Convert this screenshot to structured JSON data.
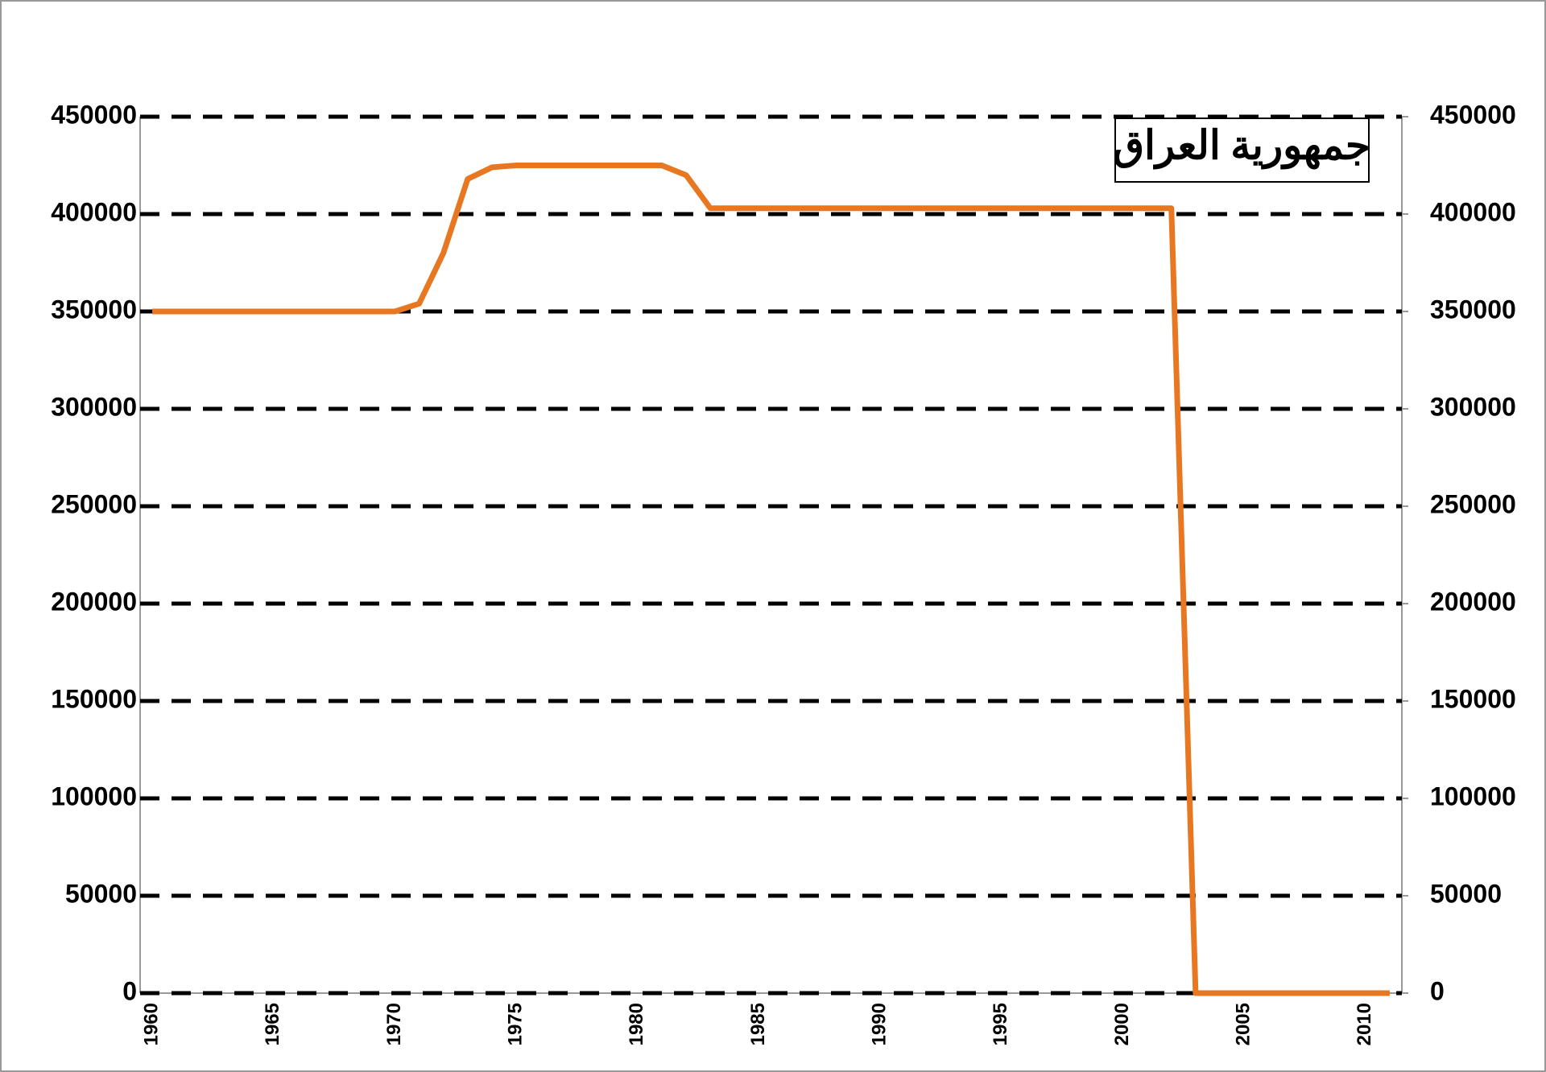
{
  "chart_data": {
    "type": "line",
    "title": "جمهورية العراق",
    "categories": [
      "1960",
      null,
      null,
      null,
      null,
      "1965",
      null,
      null,
      null,
      null,
      "1970",
      null,
      null,
      null,
      null,
      "1975",
      null,
      null,
      null,
      null,
      "1980",
      null,
      null,
      null,
      null,
      "1985",
      null,
      null,
      null,
      null,
      "1990",
      null,
      null,
      null,
      null,
      "1995",
      null,
      null,
      null,
      null,
      "2000",
      null,
      null,
      null,
      null,
      "2005",
      null,
      null,
      null,
      null,
      "2010",
      null
    ],
    "series": [
      {
        "color": "#e87722",
        "values": [
          350000,
          350000,
          350000,
          350000,
          350000,
          350000,
          350000,
          350000,
          350000,
          350000,
          350000,
          354000,
          380000,
          418000,
          424000,
          425000,
          425000,
          425000,
          425000,
          425000,
          425000,
          425000,
          420000,
          403000,
          403000,
          403000,
          403000,
          403000,
          403000,
          403000,
          403000,
          403000,
          403000,
          403000,
          403000,
          403000,
          403000,
          403000,
          403000,
          403000,
          403000,
          403000,
          403000,
          0,
          0,
          0,
          0,
          0,
          0,
          0,
          0,
          0
        ]
      }
    ],
    "ylim": [
      0,
      450000
    ],
    "yticks": [
      0,
      50000,
      100000,
      150000,
      200000,
      250000,
      300000,
      350000,
      400000,
      450000
    ],
    "y2lim": [
      0,
      450000
    ],
    "y2ticks": [
      0,
      50000,
      100000,
      150000,
      200000,
      250000,
      300000,
      350000,
      400000,
      450000
    ],
    "grid": true
  }
}
